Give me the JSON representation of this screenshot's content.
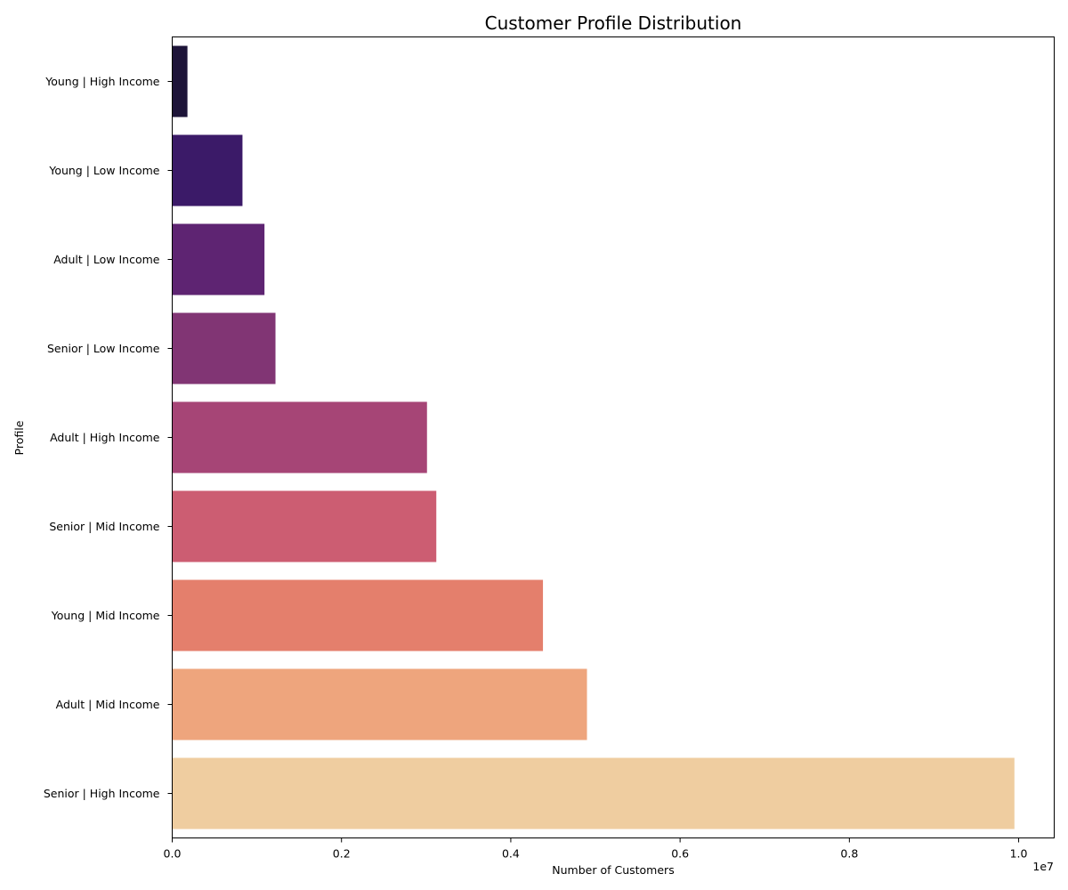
{
  "chart_data": {
    "type": "bar",
    "orientation": "horizontal",
    "title": "Customer Profile Distribution",
    "xlabel": "Number of Customers",
    "ylabel": "Profile",
    "x_offset_text": "1e7",
    "xlim": [
      0,
      10420000
    ],
    "xticks": [
      0,
      2000000,
      4000000,
      6000000,
      8000000,
      10000000
    ],
    "xtick_labels": [
      "0.0",
      "0.2",
      "0.4",
      "0.6",
      "0.8",
      "1.0"
    ],
    "grid": false,
    "categories": [
      "Young | High Income",
      "Young | Low Income",
      "Adult | Low Income",
      "Senior | Low Income",
      "Adult | High Income",
      "Senior | Mid Income",
      "Young | Mid Income",
      "Adult | Mid Income",
      "Senior | High Income"
    ],
    "values": [
      180000,
      830000,
      1090000,
      1220000,
      3010000,
      3120000,
      4380000,
      4900000,
      9950000
    ],
    "colors": [
      "#1d1438",
      "#3b1a68",
      "#5e2472",
      "#813574",
      "#a64576",
      "#cc5d72",
      "#e47f6c",
      "#eea57d",
      "#efcda0"
    ]
  }
}
